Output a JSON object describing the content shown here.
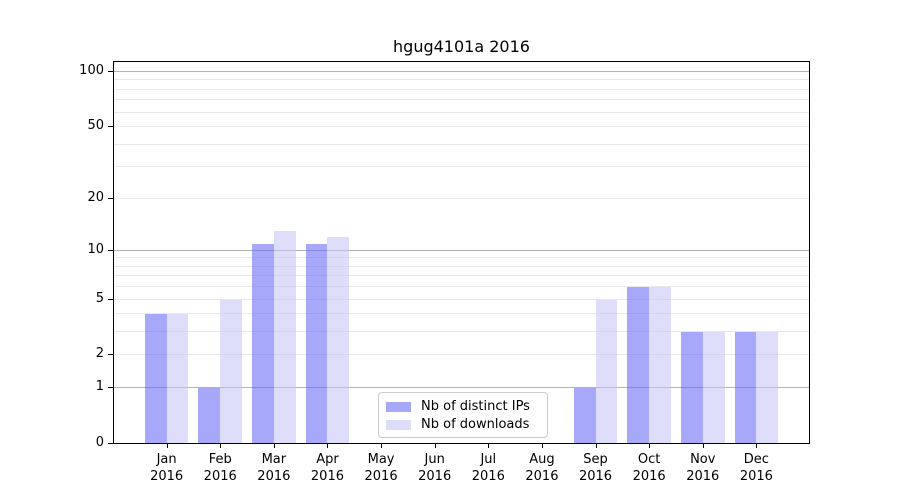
{
  "chart_data": {
    "type": "bar",
    "title": "hgug4101a 2016",
    "year": "2016",
    "months": [
      "Jan",
      "Feb",
      "Mar",
      "Apr",
      "May",
      "Jun",
      "Jul",
      "Aug",
      "Sep",
      "Oct",
      "Nov",
      "Dec"
    ],
    "series": [
      {
        "name": "Nb of distinct IPs",
        "color": "#a8a8fa",
        "fill_rgba": "rgba(97,97,246,0.55)",
        "values": [
          4,
          1,
          11,
          11,
          0,
          0,
          0,
          0,
          1,
          6,
          3,
          3
        ]
      },
      {
        "name": "Nb of downloads",
        "color": "#dedefa",
        "fill_rgba": "rgba(195,195,246,0.55)",
        "values": [
          4,
          5,
          13,
          12,
          0,
          0,
          0,
          0,
          5,
          6,
          3,
          3
        ]
      }
    ],
    "y_axis": {
      "scale": "log1p",
      "tick_values": [
        0,
        1,
        2,
        5,
        10,
        20,
        50,
        100
      ],
      "major_grid_values": [
        1,
        10,
        100
      ],
      "minor_grid_values": [
        2,
        3,
        4,
        5,
        6,
        7,
        8,
        9,
        20,
        30,
        40,
        50,
        60,
        70,
        80,
        90
      ],
      "ylim": [
        0,
        113
      ]
    },
    "x_axis": {
      "tick_label_lines": 2
    },
    "legend": {
      "position": "lower center"
    },
    "colors": {
      "major_grid": "#b3b3b3",
      "minor_grid": "#e9e9e9",
      "axis": "#000000",
      "background": "#ffffff",
      "legend_border": "#cccccc"
    }
  }
}
